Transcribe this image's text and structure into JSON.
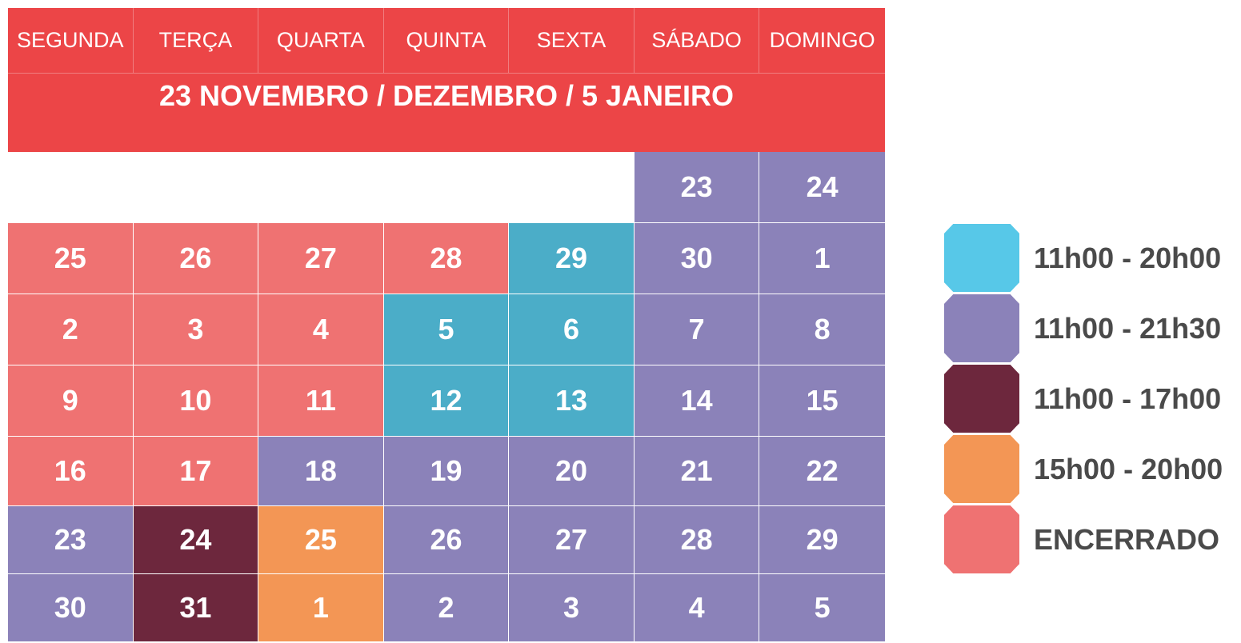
{
  "colors": {
    "header": "#ec4547",
    "closed": "#ef7272",
    "cyan": "#4badc8",
    "purple": "#8b82b9",
    "maroon": "#6d273d",
    "orange": "#f39655",
    "empty": "#ffffff"
  },
  "weekdays": [
    "SEGUNDA",
    "TERÇA",
    "QUARTA",
    "QUINTA",
    "SEXTA",
    "SÁBADO",
    "DOMINGO"
  ],
  "period_title": "23 NOVEMBRO / DEZEMBRO / 5 JANEIRO",
  "weeks": [
    [
      {
        "d": "",
        "c": "empty"
      },
      {
        "d": "",
        "c": "empty"
      },
      {
        "d": "",
        "c": "empty"
      },
      {
        "d": "",
        "c": "empty"
      },
      {
        "d": "",
        "c": "empty"
      },
      {
        "d": "23",
        "c": "purple"
      },
      {
        "d": "24",
        "c": "purple"
      }
    ],
    [
      {
        "d": "25",
        "c": "closed"
      },
      {
        "d": "26",
        "c": "closed"
      },
      {
        "d": "27",
        "c": "closed"
      },
      {
        "d": "28",
        "c": "closed"
      },
      {
        "d": "29",
        "c": "cyan"
      },
      {
        "d": "30",
        "c": "purple"
      },
      {
        "d": "1",
        "c": "purple"
      }
    ],
    [
      {
        "d": "2",
        "c": "closed"
      },
      {
        "d": "3",
        "c": "closed"
      },
      {
        "d": "4",
        "c": "closed"
      },
      {
        "d": "5",
        "c": "cyan"
      },
      {
        "d": "6",
        "c": "cyan"
      },
      {
        "d": "7",
        "c": "purple"
      },
      {
        "d": "8",
        "c": "purple"
      }
    ],
    [
      {
        "d": "9",
        "c": "closed"
      },
      {
        "d": "10",
        "c": "closed"
      },
      {
        "d": "11",
        "c": "closed"
      },
      {
        "d": "12",
        "c": "cyan"
      },
      {
        "d": "13",
        "c": "cyan"
      },
      {
        "d": "14",
        "c": "purple"
      },
      {
        "d": "15",
        "c": "purple"
      }
    ],
    [
      {
        "d": "16",
        "c": "closed"
      },
      {
        "d": "17",
        "c": "closed"
      },
      {
        "d": "18",
        "c": "purple"
      },
      {
        "d": "19",
        "c": "purple"
      },
      {
        "d": "20",
        "c": "purple"
      },
      {
        "d": "21",
        "c": "purple"
      },
      {
        "d": "22",
        "c": "purple"
      }
    ],
    [
      {
        "d": "23",
        "c": "purple"
      },
      {
        "d": "24",
        "c": "maroon"
      },
      {
        "d": "25",
        "c": "orange"
      },
      {
        "d": "26",
        "c": "purple"
      },
      {
        "d": "27",
        "c": "purple"
      },
      {
        "d": "28",
        "c": "purple"
      },
      {
        "d": "29",
        "c": "purple"
      }
    ],
    [
      {
        "d": "30",
        "c": "purple"
      },
      {
        "d": "31",
        "c": "maroon"
      },
      {
        "d": "1",
        "c": "orange"
      },
      {
        "d": "2",
        "c": "purple"
      },
      {
        "d": "3",
        "c": "purple"
      },
      {
        "d": "4",
        "c": "purple"
      },
      {
        "d": "5",
        "c": "purple"
      }
    ]
  ],
  "legend": [
    {
      "label": "11h00 - 20h00",
      "swatch": "#57c8e8"
    },
    {
      "label": "11h00 - 21h30",
      "swatch": "#8b82b9"
    },
    {
      "label": "11h00 - 17h00",
      "swatch": "#6d273d"
    },
    {
      "label": "15h00 - 20h00",
      "swatch": "#f39655"
    },
    {
      "label": "ENCERRADO",
      "swatch": "#ef7272"
    }
  ]
}
